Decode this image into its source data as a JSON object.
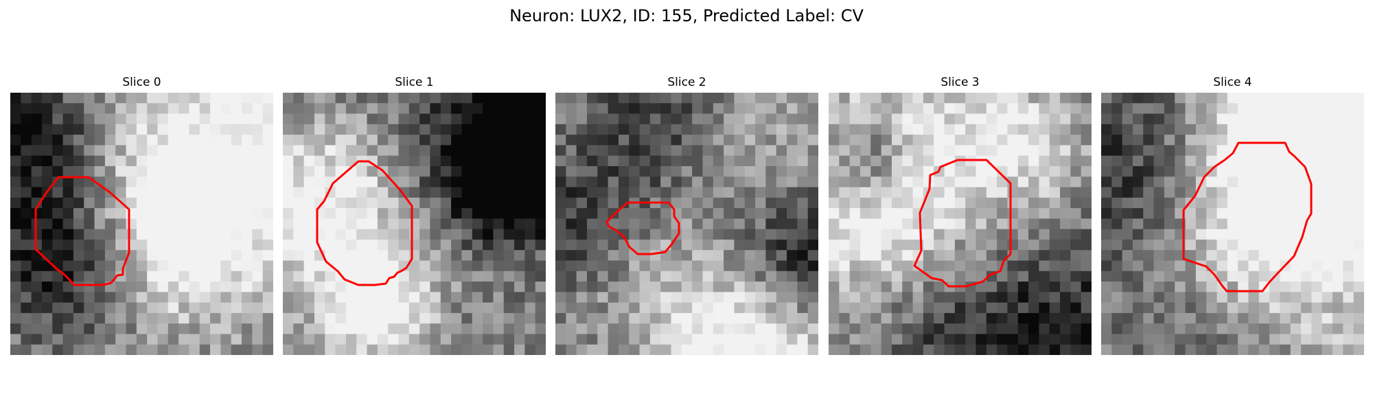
{
  "figure": {
    "title": "Neuron: LUX2, ID: 155, Predicted Label: CV",
    "panels": [
      {
        "title": "Slice 0"
      },
      {
        "title": "Slice 1"
      },
      {
        "title": "Slice 2"
      },
      {
        "title": "Slice 3"
      },
      {
        "title": "Slice 4"
      }
    ],
    "contour_color": "#ff0000",
    "colormap": "gray"
  }
}
